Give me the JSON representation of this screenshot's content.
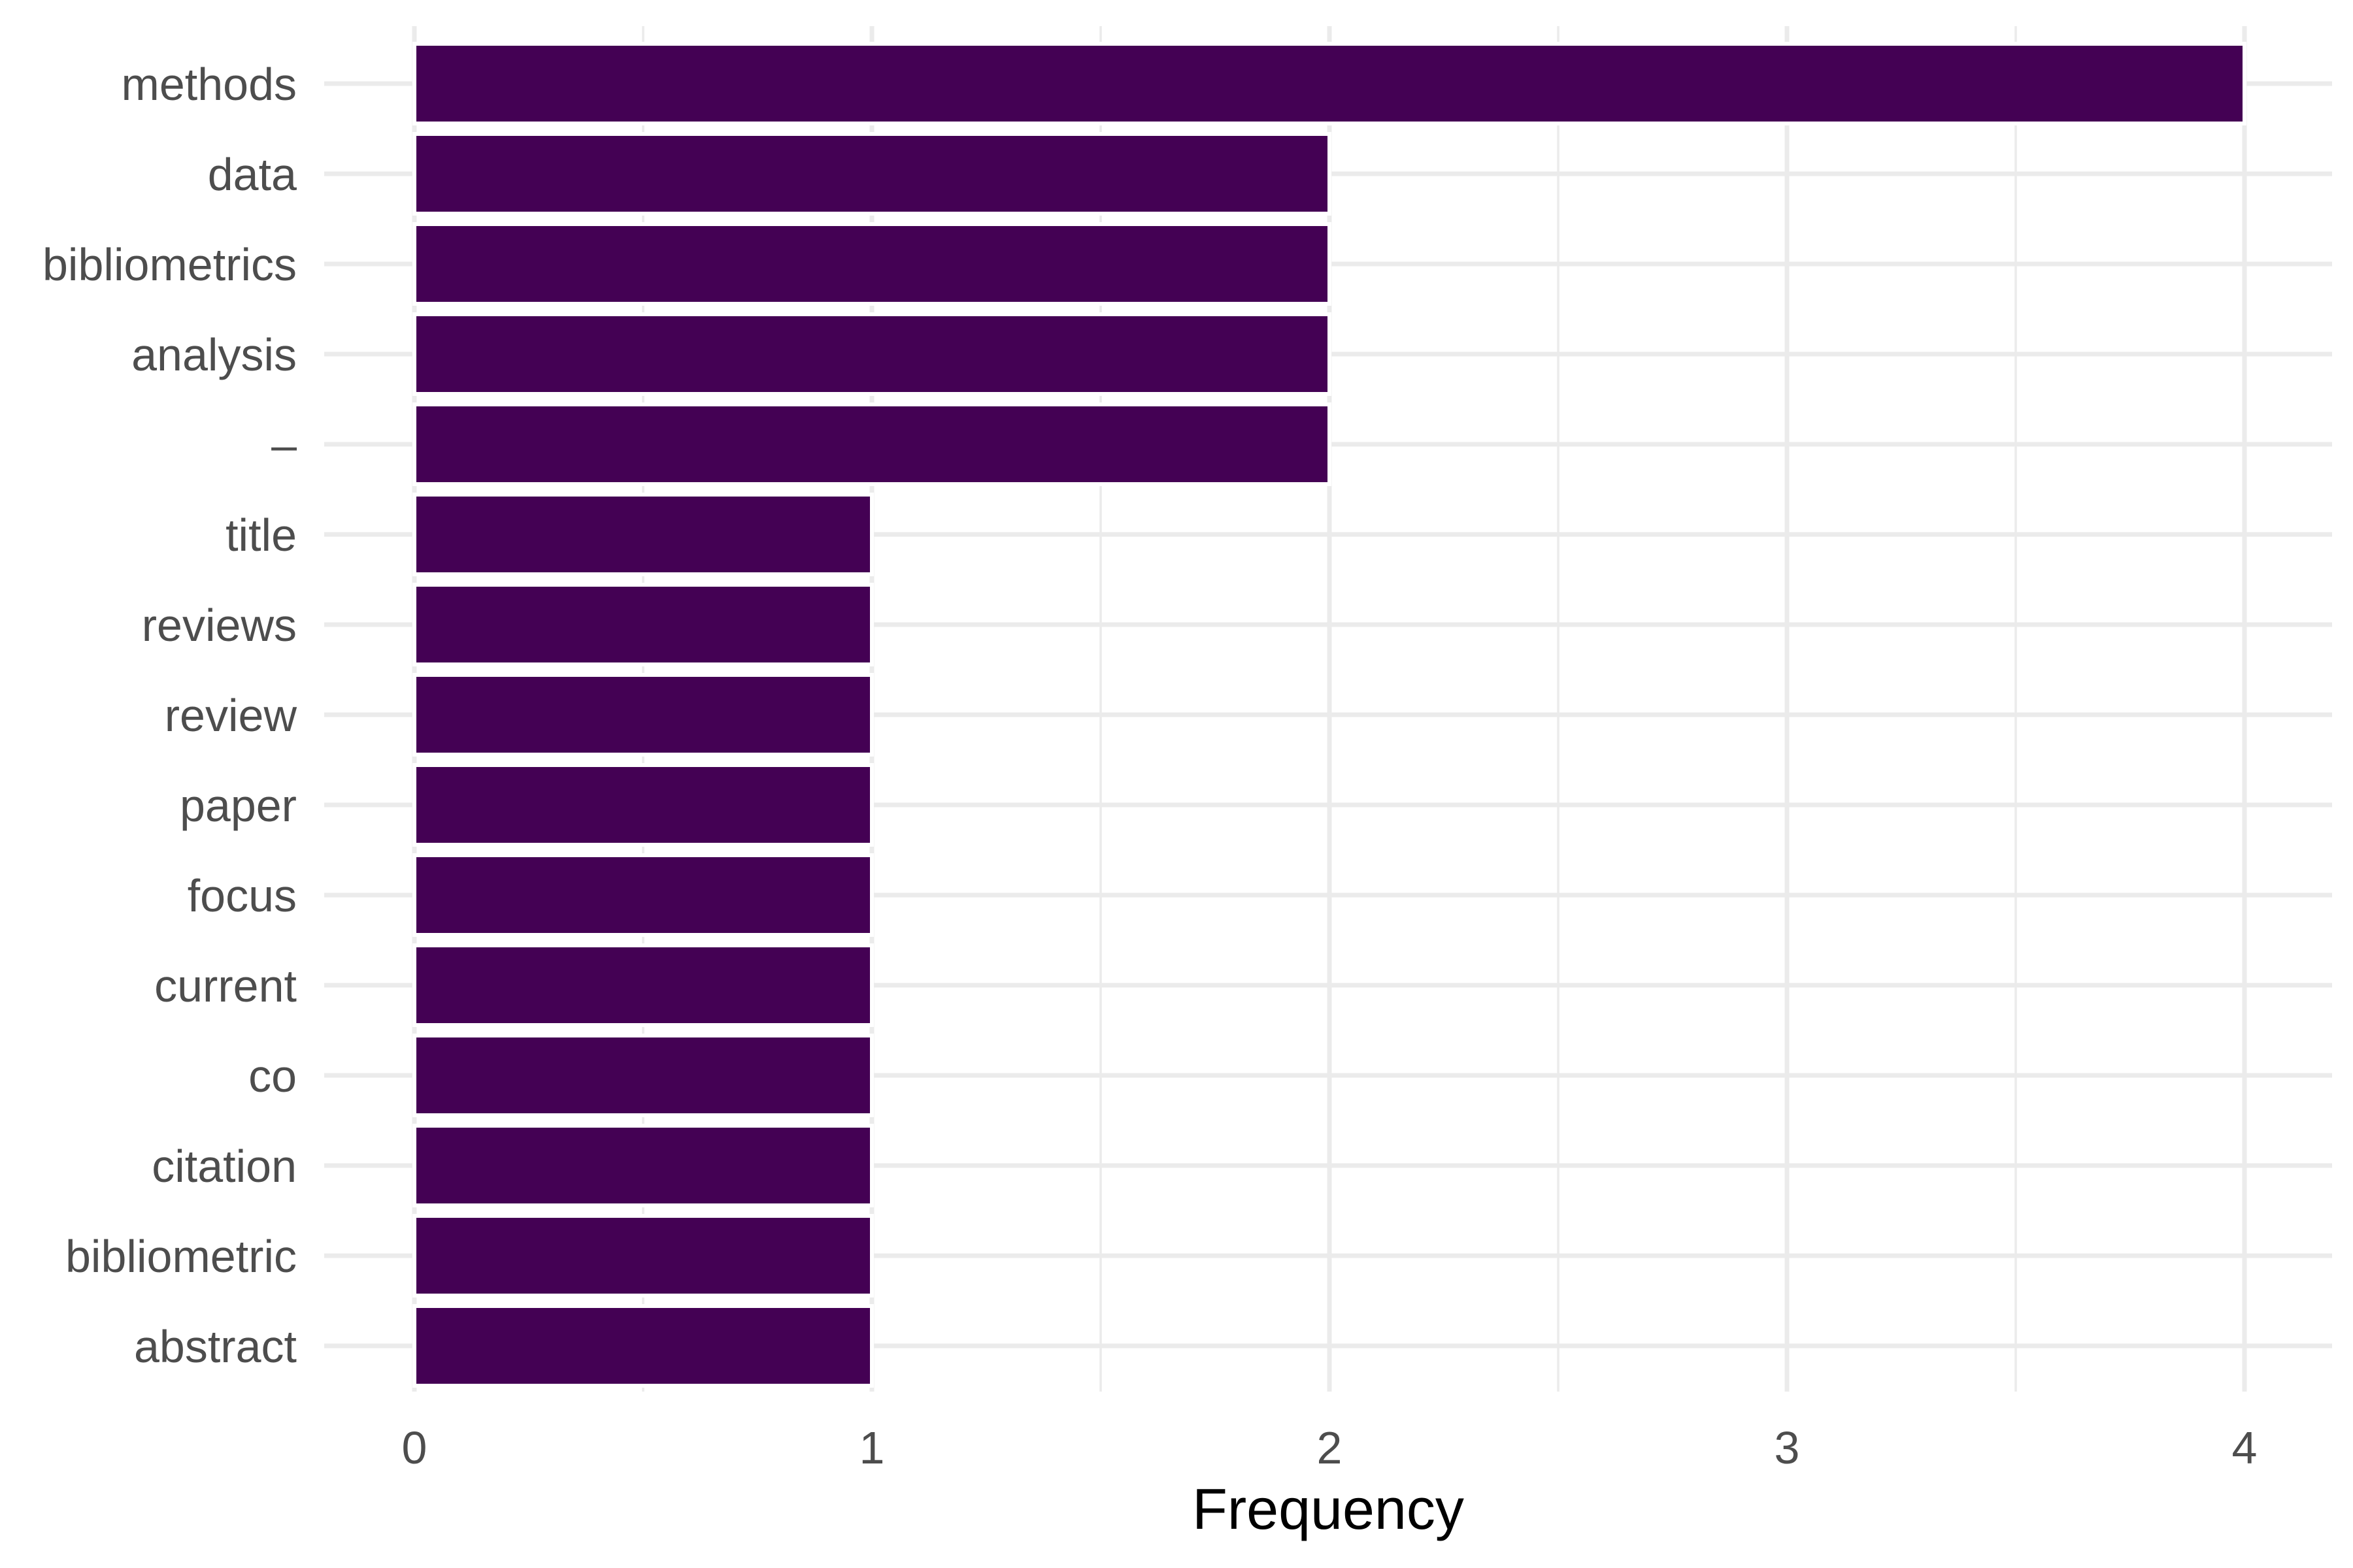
{
  "chart_data": {
    "type": "bar",
    "orientation": "horizontal",
    "title": "",
    "xlabel": "Frequency",
    "ylabel": "",
    "categories": [
      "methods",
      "data",
      "bibliometrics",
      "analysis",
      "–",
      "title",
      "reviews",
      "review",
      "paper",
      "focus",
      "current",
      "co",
      "citation",
      "bibliometric",
      "abstract"
    ],
    "values": [
      4,
      2,
      2,
      2,
      2,
      1,
      1,
      1,
      1,
      1,
      1,
      1,
      1,
      1,
      1
    ],
    "xlim": [
      0,
      4
    ],
    "x_ticks": [
      0,
      1,
      2,
      3,
      4
    ],
    "x_tick_labels": [
      "0",
      "1",
      "2",
      "3",
      "4"
    ],
    "grid": true,
    "legend": "none",
    "bar_color": "#440154",
    "grid_color": "#ebebeb",
    "background": "#ffffff"
  }
}
